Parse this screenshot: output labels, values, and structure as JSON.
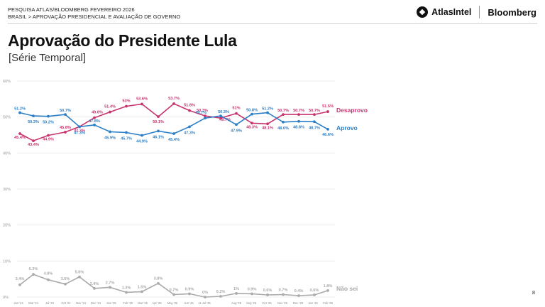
{
  "header": {
    "line1": "PESQUISA ATLAS/BLOOMBERG FEVEREIRO 2026",
    "line2": "BRASIL > APROVAÇÃO PRESIDENCIAL E AVALIAÇÃO DE GOVERNO"
  },
  "logos": {
    "atlas": "AtlasIntel",
    "bloomberg": "Bloomberg"
  },
  "title": "Aprovação do Presidente Lula",
  "subtitle": "[Série Temporal]",
  "page_number": "8",
  "colors": {
    "desaprovo": "#c8336e",
    "aprovo": "#2a7fc7",
    "nao_sei": "#aaaaaa",
    "grid": "#e8e8e8"
  },
  "chart_data": {
    "type": "line",
    "ylim": [
      0,
      60
    ],
    "yticks": [
      "0%",
      "10%",
      "20%",
      "30%",
      "40%",
      "50%",
      "60%"
    ],
    "x_tick_labels": [
      "Jan '24",
      "Mar '24",
      "Jul '24",
      "Oct '24",
      "Nov '24",
      "Dec '24",
      "Jan '25",
      "Feb '25",
      "Mar '25",
      "Apr '25",
      "May '25",
      "Jun '25",
      "11 Jul '25",
      "Aug '25",
      "Sep '25",
      "Oct '25",
      "Nov '25",
      "Dec '25",
      "Jan '26",
      "Feb '26"
    ],
    "series": [
      {
        "name": "Desaprovo",
        "points": [
          {
            "x": "Jan '24",
            "y": 45.4
          },
          {
            "x": "Mar '24",
            "y": 43.4
          },
          {
            "x": "Jul '24",
            "y": 44.9
          },
          {
            "x": "Oct '24",
            "y": 45.8
          },
          {
            "x": "Nov '24",
            "y": 47.3
          },
          {
            "x": "Dec '24",
            "y": 49.8
          },
          {
            "x": "Jan '25",
            "y": 51.4
          },
          {
            "x": "Feb '25",
            "y": 53
          },
          {
            "x": "Mar '25",
            "y": 53.6
          },
          {
            "x": "Apr '25",
            "y": 50.1
          },
          {
            "x": "Apr '25",
            "y": 53.7
          },
          {
            "x": "May '25",
            "y": 51.8
          },
          {
            "x": "Jun '25",
            "y": 50.3
          },
          {
            "x": "11 Jul '25",
            "y": 49.7
          },
          {
            "x": "Aug '25",
            "y": 51
          },
          {
            "x": "Sep '25",
            "y": 48.3
          },
          {
            "x": "Oct '25",
            "y": 48.1
          },
          {
            "x": "Nov '25",
            "y": 50.7
          },
          {
            "x": "Dec '25",
            "y": 50.7
          },
          {
            "x": "Jan '26",
            "y": 50.7
          },
          {
            "x": "Feb '26",
            "y": 51.5
          }
        ],
        "data_labels": [
          "45.4%",
          "43.4%",
          "44.9%",
          "45.8%",
          "47.3%",
          "49.8%",
          "51.4%",
          "53%",
          "53.6%",
          "50.1%",
          "53.7%",
          "51.8%",
          "50.3%",
          "49.7%",
          "51%",
          "48.3%",
          "48.1%",
          "50.7%",
          "50.7%",
          "50.7%",
          "51.5%"
        ]
      },
      {
        "name": "Aprovo",
        "points": [
          {
            "x": "Jan '24",
            "y": 51.2
          },
          {
            "x": "Mar '24",
            "y": 50.3
          },
          {
            "x": "Jul '24",
            "y": 50.2
          },
          {
            "x": "Oct '24",
            "y": 50.7
          },
          {
            "x": "Nov '24",
            "y": 47.3
          },
          {
            "x": "Dec '24",
            "y": 47.8
          },
          {
            "x": "Jan '25",
            "y": 45.9
          },
          {
            "x": "Feb '25",
            "y": 45.7
          },
          {
            "x": "Mar '25",
            "y": 44.9
          },
          {
            "x": "Apr '25",
            "y": 46.1
          },
          {
            "x": "Apr '25",
            "y": 45.4
          },
          {
            "x": "May '25",
            "y": 47.3
          },
          {
            "x": "Jun '25",
            "y": 49.7
          },
          {
            "x": "11 Jul '25",
            "y": 50.3
          },
          {
            "x": "Aug '25",
            "y": 47.9
          },
          {
            "x": "Sep '25",
            "y": 50.8
          },
          {
            "x": "Oct '25",
            "y": 51.2
          },
          {
            "x": "Nov '25",
            "y": 48.6
          },
          {
            "x": "Dec '25",
            "y": 48.8
          },
          {
            "x": "Jan '26",
            "y": 48.7
          },
          {
            "x": "Feb '26",
            "y": 46.6
          }
        ],
        "data_labels": [
          "51.2%",
          "50.3%",
          "50.2%",
          "50.7%",
          "47.3%",
          "47.8%",
          "45.9%",
          "45.7%",
          "44.9%",
          "46.1%",
          "45.4%",
          "47.3%",
          "49.7%",
          "50.3%",
          "47.9%",
          "50.8%",
          "51.2%",
          "48.6%",
          "48.8%",
          "48.7%",
          "46.6%"
        ]
      },
      {
        "name": "Não sei",
        "points": [
          {
            "x": "Jan '24",
            "y": 3.4
          },
          {
            "x": "Mar '24",
            "y": 6.3
          },
          {
            "x": "Jul '24",
            "y": 4.8
          },
          {
            "x": "Oct '24",
            "y": 3.6
          },
          {
            "x": "Nov '24",
            "y": 5.6
          },
          {
            "x": "Dec '24",
            "y": 2.4
          },
          {
            "x": "Jan '25",
            "y": 2.7
          },
          {
            "x": "Feb '25",
            "y": 1.3
          },
          {
            "x": "Mar '25",
            "y": 1.5
          },
          {
            "x": "Apr '25",
            "y": 3.8
          },
          {
            "x": "Apr '25",
            "y": 0.7
          },
          {
            "x": "May '25",
            "y": 0.9
          },
          {
            "x": "Jun '25",
            "y": 0
          },
          {
            "x": "11 Jul '25",
            "y": 0.2
          },
          {
            "x": "Aug '25",
            "y": 1
          },
          {
            "x": "Sep '25",
            "y": 0.9
          },
          {
            "x": "Oct '25",
            "y": 0.6
          },
          {
            "x": "Nov '25",
            "y": 0.7
          },
          {
            "x": "Dec '25",
            "y": 0.4
          },
          {
            "x": "Jan '26",
            "y": 0.6
          },
          {
            "x": "Feb '26",
            "y": 1.8
          }
        ],
        "data_labels": [
          "3.4%",
          "6.3%",
          "4.8%",
          "3.6%",
          "5.6%",
          "2.4%",
          "2.7%",
          "1.3%",
          "1.5%",
          "3.8%",
          "0.7%",
          "0.9%",
          "0%",
          "0.2%",
          "1%",
          "0.9%",
          "0.6%",
          "0.7%",
          "0.4%",
          "0.6%",
          "1.8%"
        ]
      }
    ]
  }
}
